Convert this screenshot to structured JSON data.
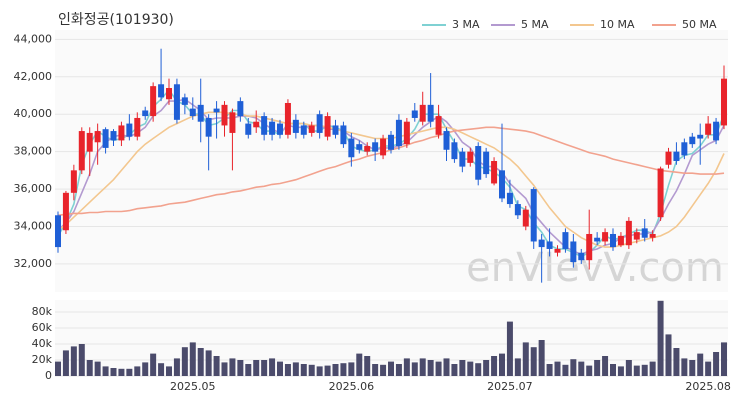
{
  "chart_data": {
    "type": "candlestick",
    "title": "인화정공(101930)",
    "watermark": "enVIevV.com",
    "categories": [
      null,
      null,
      null,
      null,
      null,
      null,
      null,
      null,
      null,
      null,
      null,
      null,
      null,
      null,
      null,
      null,
      null,
      "2025.05",
      null,
      null,
      null,
      null,
      null,
      null,
      null,
      null,
      null,
      null,
      null,
      null,
      null,
      null,
      null,
      null,
      null,
      null,
      null,
      "2025.06",
      null,
      null,
      null,
      null,
      null,
      null,
      null,
      null,
      null,
      null,
      null,
      null,
      null,
      null,
      null,
      null,
      null,
      null,
      null,
      "2025.07",
      null,
      null,
      null,
      null,
      null,
      null,
      null,
      null,
      null,
      null,
      null,
      null,
      null,
      null,
      null,
      null,
      null,
      null,
      null,
      null,
      null,
      null,
      null,
      null,
      "2025.08",
      null,
      null
    ],
    "up_color": "#e8242b",
    "down_color": "#1f5fd6",
    "open": [
      34600,
      33800,
      35800,
      37000,
      38000,
      38500,
      39200,
      39100,
      38600,
      39500,
      38800,
      40200,
      39900,
      41600,
      40800,
      41600,
      40900,
      40300,
      40500,
      39800,
      40300,
      39400,
      39000,
      40700,
      39500,
      39300,
      39900,
      39600,
      39500,
      38900,
      39700,
      39400,
      39000,
      40000,
      38800,
      39400,
      39400,
      38700,
      38400,
      38000,
      38500,
      37800,
      38900,
      39700,
      38400,
      40200,
      39600,
      40500,
      38900,
      39100,
      38500,
      38000,
      37400,
      38300,
      38000,
      36300,
      37000,
      35800,
      35200,
      34000,
      36000,
      33300,
      33200,
      32600,
      33700,
      33200,
      32600,
      32200,
      33400,
      33200,
      33600,
      33000,
      33000,
      33300,
      33900,
      33400,
      34500,
      37300,
      38000,
      38500,
      38800,
      38900,
      38900,
      39600,
      39400
    ],
    "high": [
      34800,
      35900,
      37300,
      39300,
      39300,
      39500,
      39300,
      39200,
      39600,
      40000,
      40100,
      40400,
      41700,
      43500,
      41900,
      41900,
      41100,
      40900,
      41900,
      40000,
      40700,
      40700,
      40300,
      40900,
      39800,
      40200,
      40100,
      39800,
      39700,
      40800,
      40000,
      39600,
      39600,
      40200,
      40100,
      39700,
      39600,
      39000,
      38600,
      38500,
      38700,
      38900,
      39100,
      40000,
      39800,
      40600,
      41200,
      42200,
      40500,
      39300,
      38700,
      38200,
      38200,
      38500,
      38200,
      37700,
      39500,
      36500,
      35400,
      35100,
      36100,
      33600,
      33900,
      33000,
      33900,
      33600,
      32800,
      34900,
      33700,
      33900,
      33900,
      33700,
      34500,
      33900,
      34400,
      33800,
      37200,
      38200,
      38500,
      38700,
      39000,
      39500,
      39900,
      39800,
      42600
    ],
    "low": [
      32600,
      33600,
      35400,
      36800,
      36700,
      37300,
      37900,
      38300,
      38300,
      38600,
      38600,
      39700,
      39600,
      40700,
      40500,
      39500,
      40000,
      39700,
      38500,
      37000,
      38700,
      38800,
      37000,
      39600,
      38700,
      39000,
      38600,
      38600,
      38700,
      38700,
      38700,
      38700,
      38800,
      38700,
      38600,
      38700,
      38200,
      37200,
      37900,
      37800,
      37500,
      37600,
      37900,
      38100,
      38200,
      39600,
      39400,
      39300,
      38700,
      37500,
      37400,
      36900,
      37200,
      36200,
      36600,
      36200,
      35300,
      35000,
      34400,
      33800,
      32800,
      31000,
      32400,
      32400,
      32600,
      31800,
      32000,
      31700,
      33000,
      33000,
      32700,
      32900,
      32800,
      33100,
      33200,
      33200,
      34300,
      37100,
      37300,
      37600,
      38200,
      37300,
      38700,
      38400,
      39200
    ],
    "close": [
      32900,
      35800,
      37000,
      39100,
      39000,
      39100,
      38200,
      38600,
      39400,
      38800,
      39800,
      39900,
      41500,
      40900,
      41400,
      39700,
      40500,
      39900,
      39600,
      38800,
      40100,
      40500,
      40100,
      39900,
      38900,
      39600,
      38900,
      38900,
      38900,
      40600,
      39000,
      38900,
      39400,
      39000,
      39900,
      38900,
      38400,
      37700,
      38100,
      38300,
      38000,
      38700,
      38100,
      38300,
      39600,
      39800,
      40500,
      39600,
      39900,
      38100,
      37600,
      37200,
      38000,
      36500,
      36800,
      37500,
      35500,
      35200,
      34600,
      34900,
      33200,
      32900,
      32800,
      32800,
      32800,
      32100,
      32200,
      33600,
      33200,
      33700,
      32900,
      33500,
      34300,
      33700,
      33400,
      33600,
      37100,
      38000,
      37500,
      37800,
      38400,
      38700,
      39500,
      38600,
      41900
    ],
    "series": [
      {
        "name": "3 MA",
        "color": "#7fd1d3",
        "values": [
          33500,
          34200,
          35200,
          37300,
          38400,
          39100,
          38800,
          38600,
          38700,
          38900,
          39300,
          39500,
          40400,
          40800,
          41300,
          40700,
          40500,
          40000,
          40000,
          39400,
          39500,
          39800,
          40200,
          40200,
          39600,
          39500,
          39100,
          39100,
          38900,
          39500,
          39500,
          39500,
          39100,
          39100,
          39400,
          39300,
          39100,
          38300,
          38100,
          38000,
          38100,
          38300,
          38300,
          38400,
          38700,
          39200,
          40000,
          40000,
          40000,
          39200,
          38500,
          37600,
          37600,
          37200,
          37100,
          36900,
          36600,
          36100,
          35100,
          34900,
          34200,
          33700,
          33000,
          32800,
          32800,
          32600,
          32400,
          32600,
          33000,
          33500,
          33300,
          33400,
          33600,
          33800,
          33800,
          33600,
          34700,
          36200,
          37500,
          37800,
          37900,
          38300,
          38900,
          38900,
          40000
        ]
      },
      {
        "name": "5 MA",
        "color": "#b39ad0",
        "values": [
          33800,
          34200,
          34800,
          35800,
          36800,
          38000,
          38500,
          38800,
          38900,
          38800,
          39000,
          39300,
          39900,
          40200,
          40700,
          40700,
          40800,
          40500,
          40200,
          39700,
          39800,
          39800,
          39800,
          39900,
          39900,
          39800,
          39500,
          39200,
          39000,
          39400,
          39300,
          39300,
          39400,
          39400,
          39200,
          39200,
          39100,
          38800,
          38600,
          38300,
          38100,
          38200,
          38200,
          38300,
          38500,
          38900,
          39300,
          39600,
          39900,
          39600,
          39100,
          38500,
          38200,
          37500,
          37200,
          37200,
          36900,
          36300,
          35900,
          35500,
          34700,
          34200,
          33700,
          33300,
          32900,
          32700,
          32500,
          32700,
          32800,
          33000,
          33100,
          33400,
          33500,
          33600,
          33600,
          33700,
          34400,
          35200,
          35900,
          36800,
          37800,
          38100,
          38400,
          38600,
          39400
        ]
      },
      {
        "name": "10 MA",
        "color": "#f3c78f",
        "values": [
          33800,
          34100,
          34500,
          34900,
          35300,
          35700,
          36100,
          36500,
          37000,
          37500,
          38000,
          38400,
          38700,
          39000,
          39300,
          39500,
          39700,
          39900,
          40000,
          40100,
          40100,
          40100,
          40000,
          40000,
          39900,
          39900,
          39800,
          39700,
          39600,
          39500,
          39500,
          39500,
          39400,
          39400,
          39300,
          39200,
          39100,
          39000,
          38900,
          38800,
          38700,
          38700,
          38700,
          38800,
          38900,
          39000,
          39100,
          39200,
          39300,
          39300,
          39200,
          39000,
          38800,
          38600,
          38400,
          38200,
          37900,
          37600,
          37200,
          36700,
          36200,
          35600,
          35000,
          34500,
          34000,
          33700,
          33400,
          33200,
          33000,
          32900,
          32900,
          33000,
          33100,
          33200,
          33300,
          33400,
          33500,
          33700,
          34000,
          34500,
          35100,
          35700,
          36300,
          37000,
          37900
        ]
      },
      {
        "name": "50 MA",
        "color": "#f2a28e",
        "values": [
          34600,
          34650,
          34700,
          34700,
          34750,
          34750,
          34800,
          34800,
          34800,
          34850,
          34950,
          35000,
          35050,
          35100,
          35200,
          35250,
          35300,
          35400,
          35500,
          35600,
          35700,
          35750,
          35850,
          35900,
          36000,
          36100,
          36150,
          36250,
          36300,
          36400,
          36500,
          36650,
          36800,
          36950,
          37100,
          37200,
          37350,
          37500,
          37600,
          37750,
          37850,
          37950,
          38100,
          38200,
          38350,
          38500,
          38600,
          38750,
          38850,
          39000,
          39100,
          39150,
          39200,
          39250,
          39300,
          39300,
          39250,
          39200,
          39150,
          39100,
          39000,
          38850,
          38700,
          38550,
          38400,
          38250,
          38100,
          37950,
          37850,
          37750,
          37600,
          37500,
          37400,
          37300,
          37200,
          37100,
          37000,
          36950,
          36900,
          36850,
          36850,
          36800,
          36800,
          36800,
          36850
        ]
      }
    ],
    "ylim": [
      30500,
      44500
    ],
    "yticks": [
      {
        "value": 32000,
        "label": "32,000"
      },
      {
        "value": 34000,
        "label": "34,000"
      },
      {
        "value": 36000,
        "label": "36,000"
      },
      {
        "value": 38000,
        "label": "38,000"
      },
      {
        "value": 40000,
        "label": "40,000"
      },
      {
        "value": 42000,
        "label": "42,000"
      },
      {
        "value": 44000,
        "label": "44,000"
      }
    ],
    "grid": true,
    "volume": {
      "color": "#4b4b6b",
      "ylim": [
        0,
        95000
      ],
      "yticks": [
        0,
        {
          "value": 20000,
          "label": "20k"
        },
        {
          "value": 40000,
          "label": "40k"
        },
        {
          "value": 60000,
          "label": "60k"
        },
        {
          "value": 80000,
          "label": "80k"
        }
      ],
      "values": [
        18000,
        32000,
        37000,
        40000,
        20000,
        18000,
        12000,
        10000,
        9000,
        9000,
        12000,
        17000,
        28000,
        16000,
        12000,
        22000,
        36000,
        42000,
        35000,
        32000,
        25000,
        17000,
        22000,
        20000,
        15000,
        20000,
        20000,
        22000,
        18000,
        15000,
        17000,
        15000,
        14000,
        12000,
        13000,
        15000,
        16000,
        17000,
        28000,
        25000,
        15000,
        14000,
        18000,
        15000,
        22000,
        17000,
        22000,
        20000,
        18000,
        22000,
        15000,
        20000,
        18000,
        16000,
        20000,
        25000,
        28000,
        68000,
        22000,
        42000,
        36000,
        45000,
        15000,
        18000,
        14000,
        21000,
        18000,
        13000,
        20000,
        25000,
        15000,
        12000,
        20000,
        13000,
        14000,
        18000,
        94000,
        52000,
        35000,
        22000,
        20000,
        28000,
        18000,
        30000,
        42000
      ]
    }
  }
}
